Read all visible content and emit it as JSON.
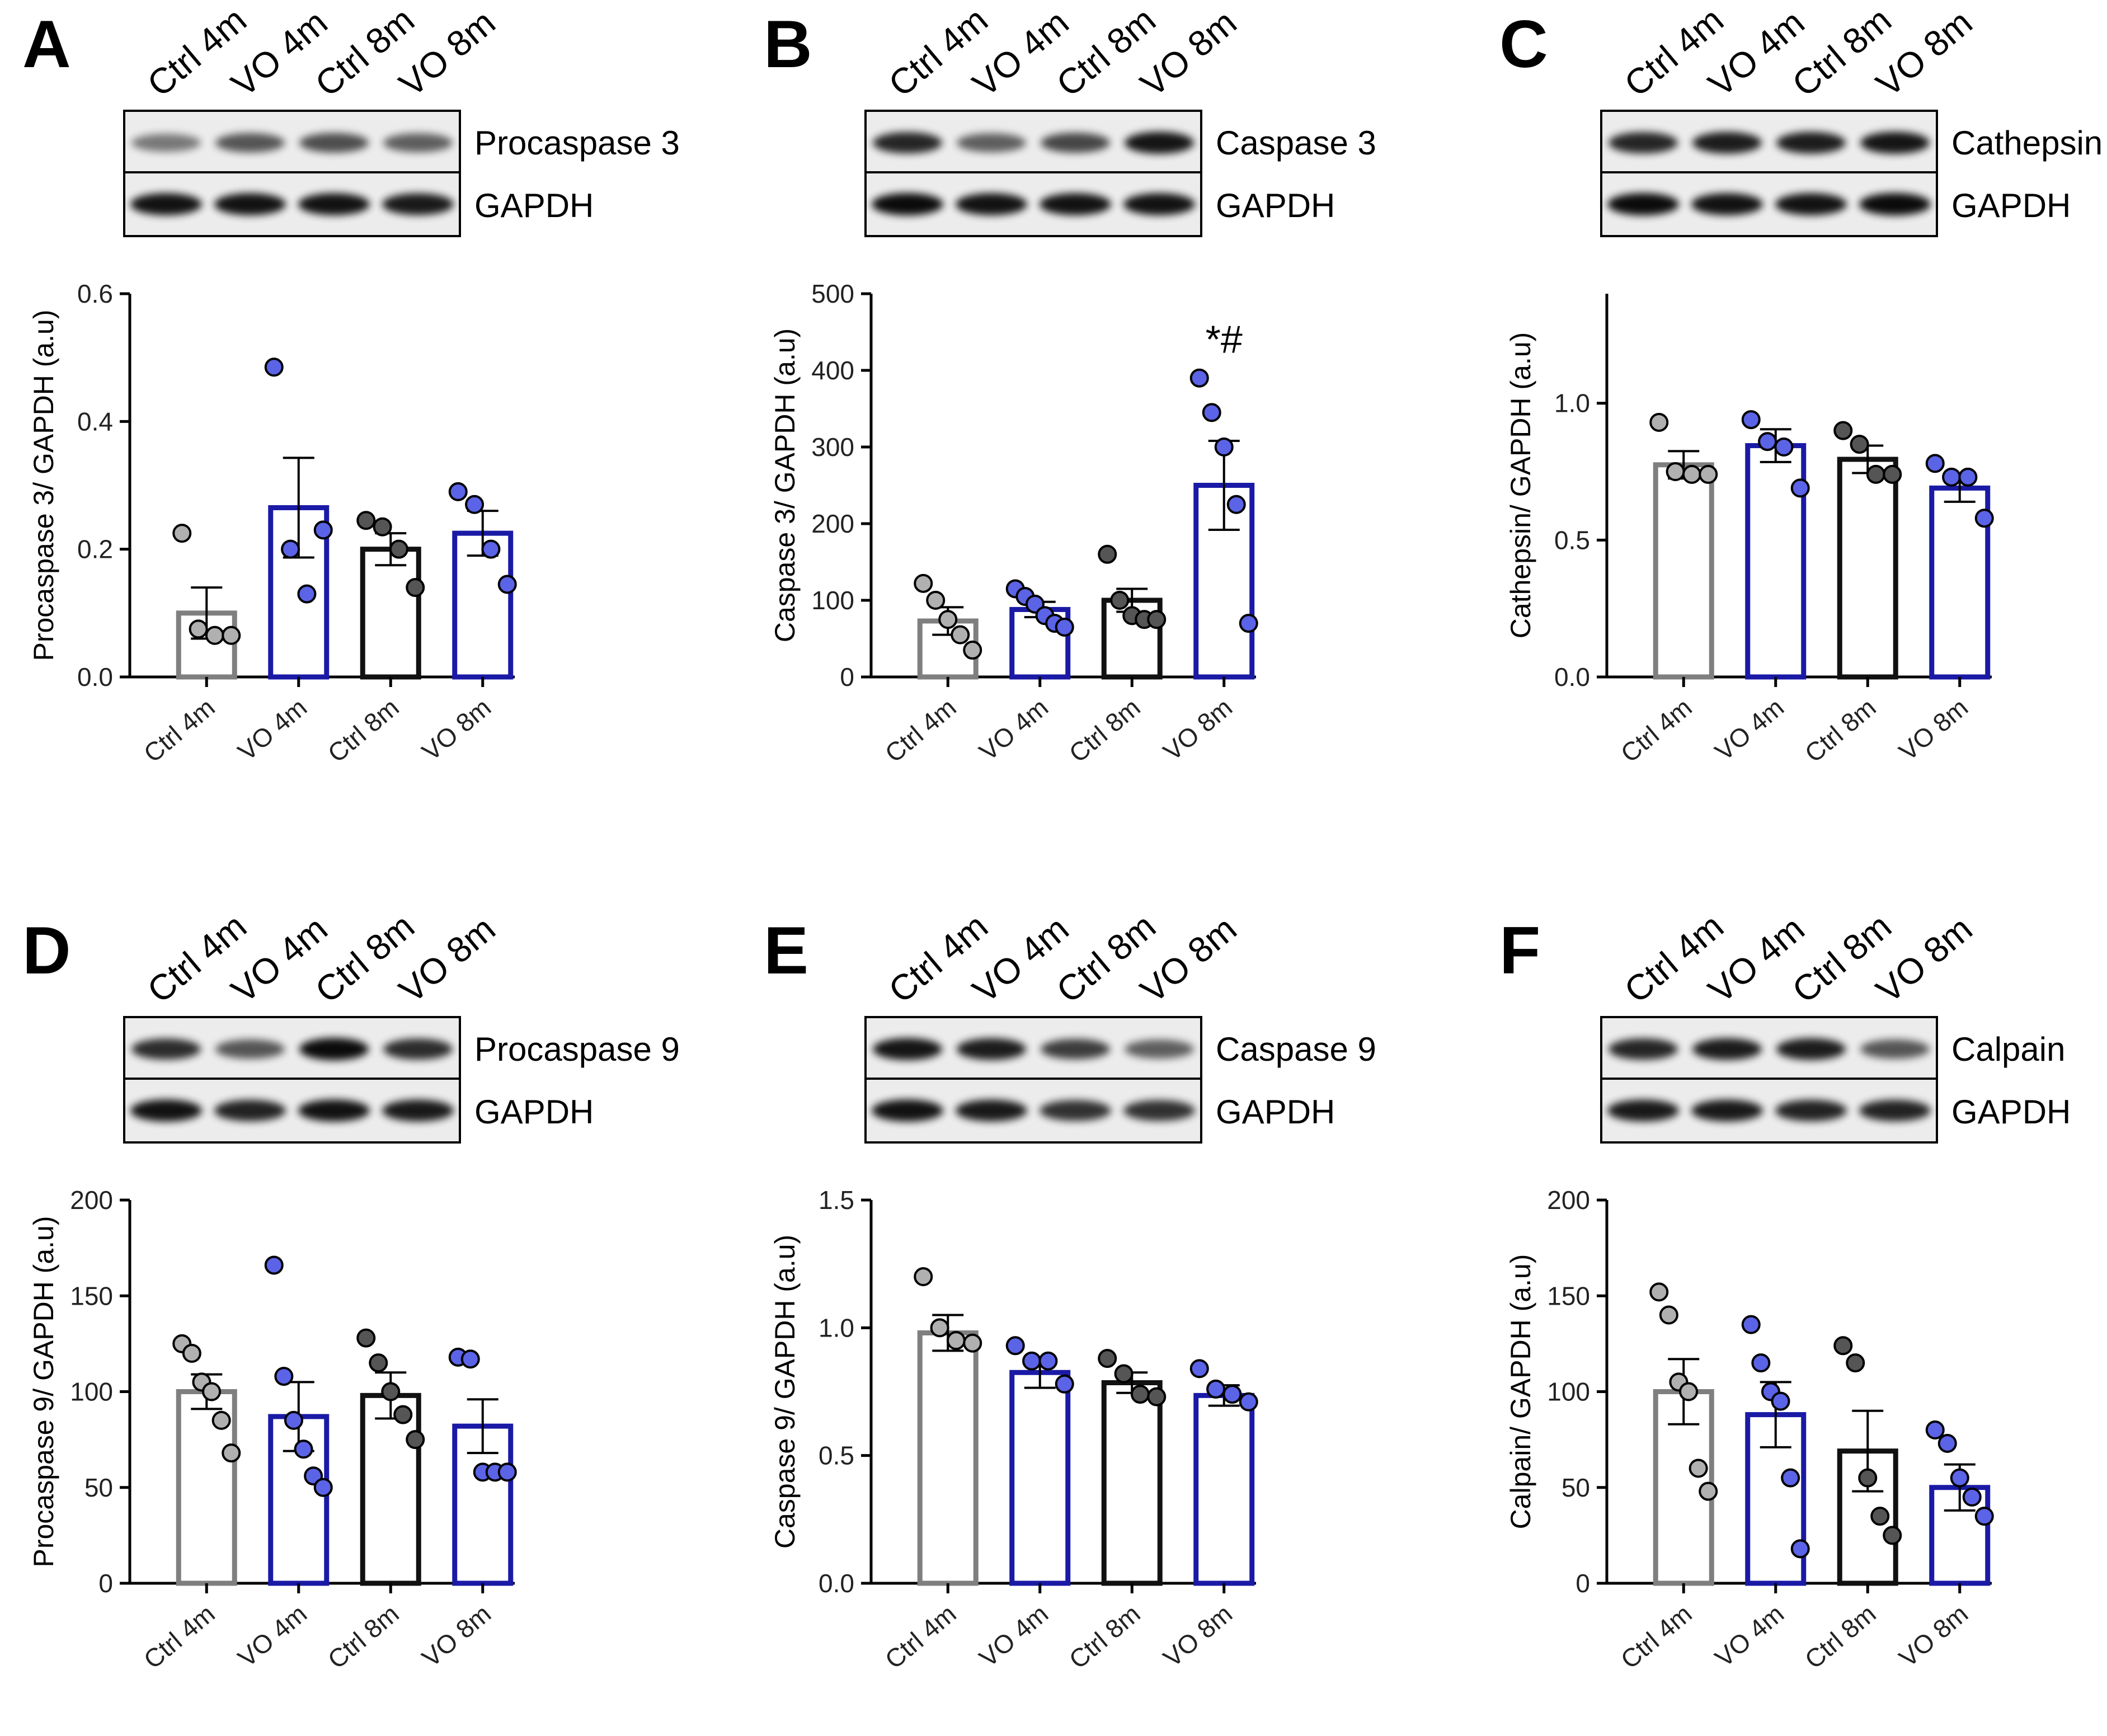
{
  "colors": {
    "ctrl4": "#7f7f7f",
    "vo": "#1a1aa6",
    "ctrl8": "#111111",
    "dot_ctrl4": "#b0b0b0",
    "dot_vo": "#5b63e6",
    "dot_ctrl8": "#555555"
  },
  "lanes": [
    "Ctrl 4m",
    "VO 4m",
    "Ctrl 8m",
    "VO 8m"
  ],
  "chart_data": [
    {
      "panel": "A",
      "type": "bar",
      "blot_labels": [
        "Procaspase 3",
        "GAPDH"
      ],
      "ylabel": "Procaspase 3/ GAPDH (a.u)",
      "ylim": [
        0,
        0.6
      ],
      "yticks": [
        0.0,
        0.2,
        0.4,
        0.6
      ],
      "tick_text": [
        "0.0",
        "0.2",
        "0.4",
        "0.6"
      ],
      "categories": [
        "Ctrl 4m",
        "VO 4m",
        "Ctrl 8m",
        "VO 8m"
      ],
      "means": [
        0.1,
        0.265,
        0.2,
        0.225
      ],
      "sem": [
        0.04,
        0.078,
        0.025,
        0.035
      ],
      "points": [
        [
          0.225,
          0.075,
          0.065,
          0.065
        ],
        [
          0.485,
          0.2,
          0.13,
          0.23
        ],
        [
          0.245,
          0.235,
          0.2,
          0.14
        ],
        [
          0.29,
          0.27,
          0.2,
          0.145
        ]
      ],
      "annotation": ""
    },
    {
      "panel": "B",
      "type": "bar",
      "blot_labels": [
        "Caspase 3",
        "GAPDH"
      ],
      "ylabel": "Caspase 3/ GAPDH (a.u)",
      "ylim": [
        0,
        500
      ],
      "yticks": [
        0,
        100,
        200,
        300,
        400,
        500
      ],
      "tick_text": [
        "0",
        "100",
        "200",
        "300",
        "400",
        "500"
      ],
      "categories": [
        "Ctrl 4m",
        "VO 4m",
        "Ctrl 8m",
        "VO 8m"
      ],
      "means": [
        73,
        88,
        100,
        250
      ],
      "sem": [
        18,
        10,
        15,
        58
      ],
      "points": [
        [
          122,
          100,
          75,
          55,
          35
        ],
        [
          115,
          105,
          95,
          80,
          70,
          65
        ],
        [
          160,
          100,
          80,
          75,
          75
        ],
        [
          390,
          345,
          300,
          225,
          70
        ]
      ],
      "annotation": "*#"
    },
    {
      "panel": "C",
      "type": "bar",
      "blot_labels": [
        "Cathepsin",
        "GAPDH"
      ],
      "ylabel": "Cathepsin/ GAPDH (a.u)",
      "ylim": [
        0,
        1.4
      ],
      "yticks": [
        0.0,
        0.5,
        1.0
      ],
      "tick_text": [
        "0.0",
        "0.5",
        "1.0"
      ],
      "categories": [
        "Ctrl 4m",
        "VO 4m",
        "Ctrl 8m",
        "VO 8m"
      ],
      "means": [
        0.775,
        0.845,
        0.795,
        0.69
      ],
      "sem": [
        0.05,
        0.06,
        0.05,
        0.05
      ],
      "points": [
        [
          0.93,
          0.75,
          0.74,
          0.74
        ],
        [
          0.94,
          0.86,
          0.84,
          0.69
        ],
        [
          0.9,
          0.85,
          0.74,
          0.74
        ],
        [
          0.78,
          0.73,
          0.73,
          0.58
        ]
      ],
      "annotation": ""
    },
    {
      "panel": "D",
      "type": "bar",
      "blot_labels": [
        "Procaspase 9",
        "GAPDH"
      ],
      "ylabel": "Procaspase 9/ GAPDH (a.u)",
      "ylim": [
        0,
        200
      ],
      "yticks": [
        0,
        50,
        100,
        150,
        200
      ],
      "tick_text": [
        "0",
        "50",
        "100",
        "150",
        "200"
      ],
      "categories": [
        "Ctrl 4m",
        "VO 4m",
        "Ctrl 8m",
        "VO 8m"
      ],
      "means": [
        100,
        87,
        98,
        82
      ],
      "sem": [
        9,
        18,
        12,
        14
      ],
      "points": [
        [
          125,
          120,
          105,
          100,
          85,
          68
        ],
        [
          166,
          108,
          85,
          70,
          56,
          50
        ],
        [
          128,
          115,
          100,
          88,
          75
        ],
        [
          118,
          117,
          58,
          58,
          58
        ]
      ],
      "annotation": ""
    },
    {
      "panel": "E",
      "type": "bar",
      "blot_labels": [
        "Caspase 9",
        "GAPDH"
      ],
      "ylabel": "Caspase 9/ GAPDH (a.u)",
      "ylim": [
        0,
        1.5
      ],
      "yticks": [
        0.0,
        0.5,
        1.0,
        1.5
      ],
      "tick_text": [
        "0.0",
        "0.5",
        "1.0",
        "1.5"
      ],
      "categories": [
        "Ctrl 4m",
        "VO 4m",
        "Ctrl 8m",
        "VO 8m"
      ],
      "means": [
        0.98,
        0.825,
        0.785,
        0.735
      ],
      "sem": [
        0.07,
        0.06,
        0.04,
        0.04
      ],
      "points": [
        [
          1.2,
          1.0,
          0.95,
          0.94
        ],
        [
          0.93,
          0.87,
          0.87,
          0.78
        ],
        [
          0.88,
          0.82,
          0.74,
          0.73
        ],
        [
          0.84,
          0.76,
          0.74,
          0.71
        ]
      ],
      "annotation": ""
    },
    {
      "panel": "F",
      "type": "bar",
      "blot_labels": [
        "Calpain",
        "GAPDH"
      ],
      "ylabel": "Calpain/ GAPDH (a.u)",
      "ylim": [
        0,
        200
      ],
      "yticks": [
        0,
        50,
        100,
        150,
        200
      ],
      "tick_text": [
        "0",
        "50",
        "100",
        "150",
        "200"
      ],
      "categories": [
        "Ctrl 4m",
        "VO 4m",
        "Ctrl 8m",
        "VO 8m"
      ],
      "means": [
        100,
        88,
        69,
        50
      ],
      "sem": [
        17,
        17,
        21,
        12
      ],
      "points": [
        [
          152,
          140,
          105,
          100,
          60,
          48
        ],
        [
          135,
          115,
          100,
          95,
          55,
          18
        ],
        [
          124,
          115,
          55,
          35,
          25
        ],
        [
          80,
          73,
          55,
          45,
          35
        ]
      ],
      "annotation": ""
    }
  ]
}
